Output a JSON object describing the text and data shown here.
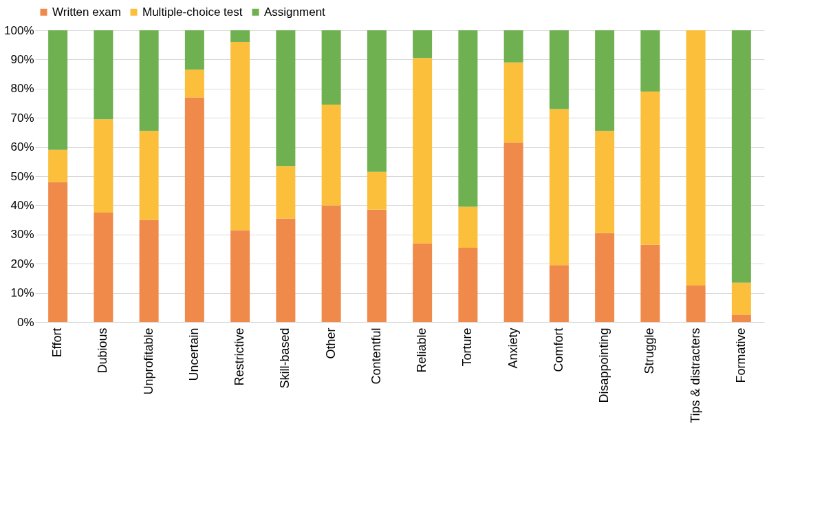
{
  "chart_data": {
    "type": "bar",
    "stacked": true,
    "categories": [
      "Effort",
      "Dubious",
      "Unprofitable",
      "Uncertain",
      "Restrictive",
      "Skill-based",
      "Other",
      "Contentful",
      "Reliable",
      "Torture",
      "Anxiety",
      "Comfort",
      "Disappointing",
      "Struggle",
      "Tips & distracters",
      "Formative"
    ],
    "series": [
      {
        "name": "Written exam",
        "color": "#f08a4b",
        "values": [
          48,
          37.5,
          35,
          77,
          31.5,
          35.5,
          40,
          38.5,
          27,
          25.5,
          61.5,
          19.5,
          30.5,
          26.5,
          12.5,
          2.5
        ]
      },
      {
        "name": "Multiple-choice test",
        "color": "#fbbf3c",
        "values": [
          11,
          32,
          30.5,
          9.5,
          64.5,
          18,
          34.5,
          13,
          63.5,
          14,
          27.5,
          53.5,
          35,
          52.5,
          87.5,
          11
        ]
      },
      {
        "name": "Assignment",
        "color": "#6fb051",
        "values": [
          41,
          30.5,
          34.5,
          13.5,
          4,
          46.5,
          25.5,
          48.5,
          9.5,
          60.5,
          11,
          27,
          34.5,
          21,
          0,
          86.5
        ]
      }
    ],
    "ylim": [
      0,
      100
    ],
    "yticks": [
      {
        "value": 0,
        "label": "0%"
      },
      {
        "value": 10,
        "label": "10%"
      },
      {
        "value": 20,
        "label": "20%"
      },
      {
        "value": 30,
        "label": "30%"
      },
      {
        "value": 40,
        "label": "40%"
      },
      {
        "value": 50,
        "label": "50%"
      },
      {
        "value": 60,
        "label": "60%"
      },
      {
        "value": 70,
        "label": "70%"
      },
      {
        "value": 80,
        "label": "80%"
      },
      {
        "value": 90,
        "label": "90%"
      },
      {
        "value": 100,
        "label": "100%"
      }
    ],
    "grid": "y",
    "legend": "top"
  }
}
